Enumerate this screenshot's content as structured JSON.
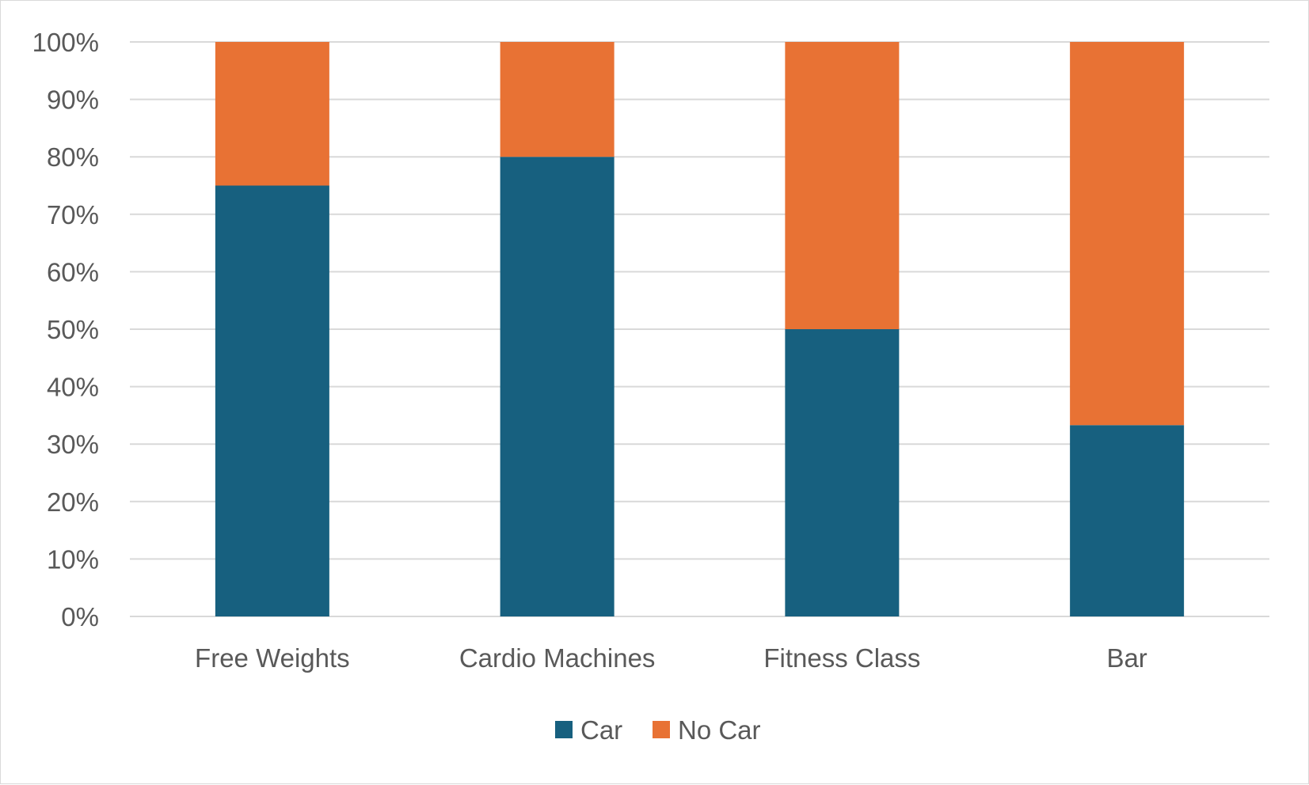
{
  "chart_data": {
    "type": "bar",
    "stacked": true,
    "percent_stacked": true,
    "categories": [
      "Free Weights",
      "Cardio Machines",
      "Fitness Class",
      "Bar"
    ],
    "series": [
      {
        "name": "Car",
        "values": [
          75,
          80,
          50,
          33.3
        ],
        "color": "#17607f"
      },
      {
        "name": "No Car",
        "values": [
          25,
          20,
          50,
          66.7
        ],
        "color": "#e87234"
      }
    ],
    "ylim": [
      0,
      100
    ],
    "yticks": [
      "0%",
      "10%",
      "20%",
      "30%",
      "40%",
      "50%",
      "60%",
      "70%",
      "80%",
      "90%",
      "100%"
    ],
    "grid": true,
    "legend_position": "bottom"
  }
}
